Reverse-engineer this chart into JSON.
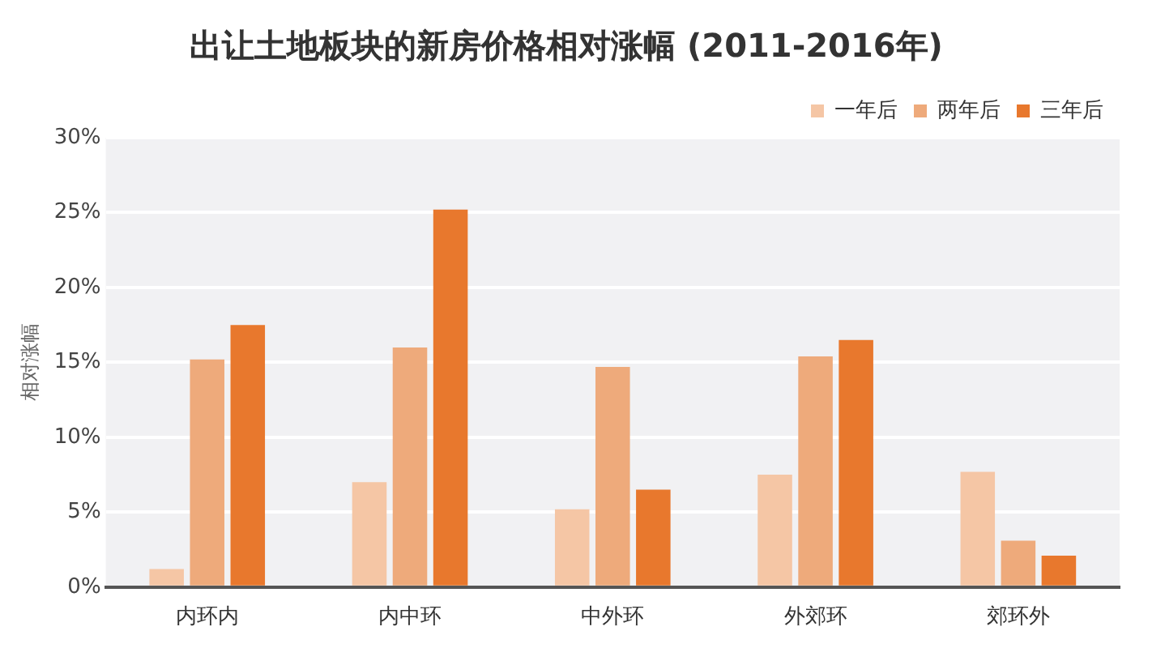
{
  "chart_data": {
    "type": "bar",
    "title": "出让土地板块的新房价格相对涨幅 (2011-2016年)",
    "ylabel": "相对涨幅",
    "categories": [
      "内环内",
      "内中环",
      "中外环",
      "外郊环",
      "郊环外"
    ],
    "series": [
      {
        "name": "一年后",
        "color": "#f5c6a5",
        "values": [
          1.2,
          7.0,
          5.2,
          7.5,
          7.7
        ]
      },
      {
        "name": "两年后",
        "color": "#eeaa7b",
        "values": [
          15.2,
          16.0,
          14.7,
          15.4,
          3.1
        ]
      },
      {
        "name": "三年后",
        "color": "#e8782d",
        "values": [
          17.5,
          25.2,
          6.5,
          16.5,
          2.1
        ]
      }
    ],
    "ylim": [
      0,
      30
    ],
    "yticks": [
      {
        "value": 0,
        "label": "0%"
      },
      {
        "value": 5,
        "label": "5%"
      },
      {
        "value": 10,
        "label": "10%"
      },
      {
        "value": 15,
        "label": "15%"
      },
      {
        "value": 20,
        "label": "20%"
      },
      {
        "value": 25,
        "label": "25%"
      },
      {
        "value": 30,
        "label": "30%"
      }
    ],
    "grid": "y",
    "legend": "top right"
  }
}
